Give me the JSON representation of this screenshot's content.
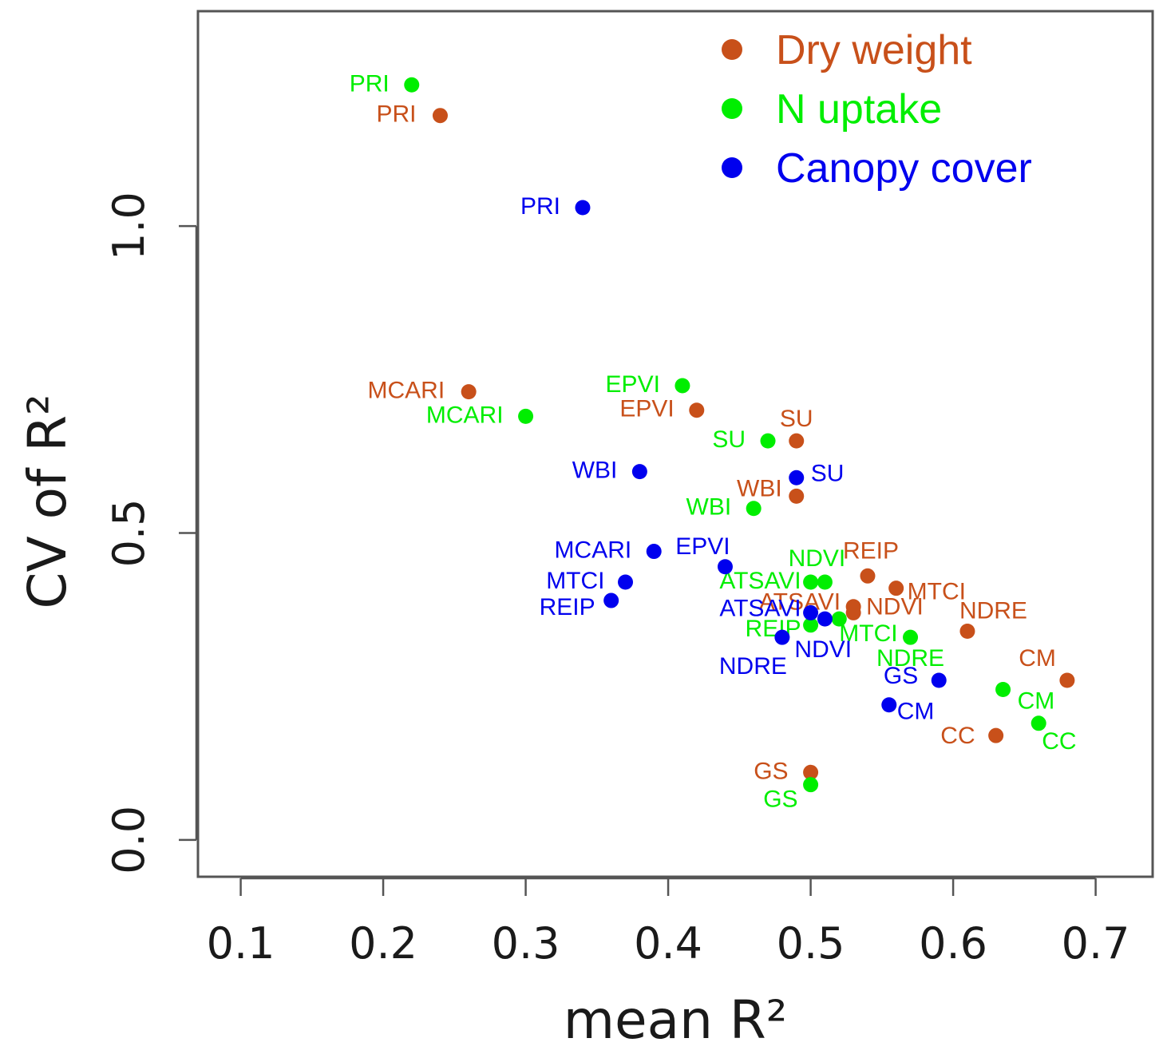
{
  "chart_data": {
    "type": "scatter",
    "title": "",
    "xlabel": "mean R²",
    "ylabel": "CV of R²",
    "xlim": [
      0.07,
      0.74
    ],
    "ylim": [
      -0.06,
      1.35
    ],
    "xticks": [
      0.1,
      0.2,
      0.3,
      0.4,
      0.5,
      0.6,
      0.7
    ],
    "xtick_labels": [
      "0.1",
      "0.2",
      "0.3",
      "0.4",
      "0.5",
      "0.6",
      "0.7"
    ],
    "yticks": [
      0.0,
      0.5,
      1.0
    ],
    "ytick_labels": [
      "0.0",
      "0.5",
      "1.0"
    ],
    "legend_position": "top-right",
    "colors": {
      "dry_weight": "#c8501a",
      "n_uptake": "#00ee00",
      "canopy_cover": "#0000ee"
    },
    "series": [
      {
        "name": "Dry weight",
        "color_key": "dry_weight",
        "points": [
          {
            "label": "PRI",
            "x": 0.24,
            "y": 1.18
          },
          {
            "label": "MCARI",
            "x": 0.26,
            "y": 0.73
          },
          {
            "label": "EPVI",
            "x": 0.42,
            "y": 0.7
          },
          {
            "label": "SU",
            "x": 0.49,
            "y": 0.65
          },
          {
            "label": "WBI",
            "x": 0.49,
            "y": 0.56
          },
          {
            "label": "REIP",
            "x": 0.54,
            "y": 0.43
          },
          {
            "label": "MTCI",
            "x": 0.56,
            "y": 0.41
          },
          {
            "label": "NDVI",
            "x": 0.53,
            "y": 0.38
          },
          {
            "label": "ATSAVI",
            "x": 0.53,
            "y": 0.37
          },
          {
            "label": "NDRE",
            "x": 0.61,
            "y": 0.34
          },
          {
            "label": "CM",
            "x": 0.68,
            "y": 0.26
          },
          {
            "label": "CC",
            "x": 0.63,
            "y": 0.17
          },
          {
            "label": "GS",
            "x": 0.5,
            "y": 0.11
          }
        ]
      },
      {
        "name": "N uptake",
        "color_key": "n_uptake",
        "points": [
          {
            "label": "PRI",
            "x": 0.22,
            "y": 1.23
          },
          {
            "label": "MCARI",
            "x": 0.3,
            "y": 0.69
          },
          {
            "label": "EPVI",
            "x": 0.41,
            "y": 0.74
          },
          {
            "label": "SU",
            "x": 0.47,
            "y": 0.65
          },
          {
            "label": "WBI",
            "x": 0.46,
            "y": 0.54
          },
          {
            "label": "NDVI",
            "x": 0.51,
            "y": 0.42
          },
          {
            "label": "ATSAVI",
            "x": 0.5,
            "y": 0.42
          },
          {
            "label": "REIP",
            "x": 0.5,
            "y": 0.35
          },
          {
            "label": "MTCI",
            "x": 0.52,
            "y": 0.36
          },
          {
            "label": "NDRE",
            "x": 0.57,
            "y": 0.33
          },
          {
            "label": "CM",
            "x": 0.635,
            "y": 0.245
          },
          {
            "label": "CC",
            "x": 0.66,
            "y": 0.19
          },
          {
            "label": "GS",
            "x": 0.5,
            "y": 0.09
          }
        ]
      },
      {
        "name": "Canopy cover",
        "color_key": "canopy_cover",
        "points": [
          {
            "label": "PRI",
            "x": 0.34,
            "y": 1.03
          },
          {
            "label": "WBI",
            "x": 0.38,
            "y": 0.6
          },
          {
            "label": "SU",
            "x": 0.49,
            "y": 0.59
          },
          {
            "label": "MCARI",
            "x": 0.39,
            "y": 0.47
          },
          {
            "label": "EPVI",
            "x": 0.44,
            "y": 0.445
          },
          {
            "label": "MTCI",
            "x": 0.37,
            "y": 0.42
          },
          {
            "label": "REIP",
            "x": 0.36,
            "y": 0.39
          },
          {
            "label": "ATSAVI",
            "x": 0.5,
            "y": 0.37
          },
          {
            "label": "NDVI",
            "x": 0.51,
            "y": 0.36
          },
          {
            "label": "NDRE",
            "x": 0.48,
            "y": 0.33
          },
          {
            "label": "GS",
            "x": 0.59,
            "y": 0.26
          },
          {
            "label": "CM",
            "x": 0.555,
            "y": 0.22
          }
        ]
      }
    ]
  }
}
